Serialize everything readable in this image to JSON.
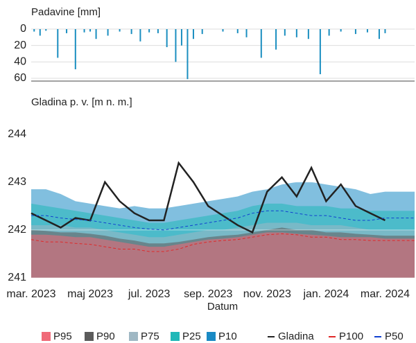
{
  "chart_data": [
    {
      "type": "bar",
      "y_label": "Padavine [mm]",
      "color": "#1a8ec0",
      "inverted": true,
      "x": [
        0.1,
        0.3,
        0.5,
        0.9,
        1.2,
        1.5,
        1.8,
        2.0,
        2.2,
        2.6,
        3.0,
        3.4,
        3.7,
        4.0,
        4.3,
        4.6,
        4.9,
        5.1,
        5.3,
        5.5,
        5.8,
        6.5,
        7.0,
        7.3,
        7.8,
        8.3,
        8.6,
        9.0,
        9.4,
        9.8,
        10.1,
        10.5,
        11.0,
        11.4,
        11.8,
        12.0
      ],
      "values": [
        3,
        8,
        2,
        35,
        5,
        49,
        4,
        3,
        12,
        8,
        3,
        6,
        15,
        4,
        5,
        22,
        40,
        20,
        61,
        12,
        6,
        3,
        5,
        10,
        35,
        25,
        8,
        10,
        12,
        55,
        8,
        3,
        6,
        4,
        12,
        5
      ],
      "xlim": [
        0,
        13
      ],
      "ylim": [
        0,
        60
      ],
      "yticks": [
        0,
        20,
        40,
        60
      ],
      "grid": true
    },
    {
      "type": "line",
      "y_label": "Gladina p. v. [m n. m.]",
      "x_label": "Datum",
      "grid": true,
      "xlim": [
        0,
        13
      ],
      "ylim": [
        241,
        244.4
      ],
      "yticks": [
        241,
        242,
        243,
        244
      ],
      "xticks": [
        {
          "value": 0,
          "label": "mar. 2023"
        },
        {
          "value": 2,
          "label": "maj 2023"
        },
        {
          "value": 4,
          "label": "jul. 2023"
        },
        {
          "value": 6,
          "label": "sep. 2023"
        },
        {
          "value": 8,
          "label": "nov. 2023"
        },
        {
          "value": 10,
          "label": "jan. 2024"
        },
        {
          "value": 12,
          "label": "mar. 2024"
        }
      ],
      "x": [
        0,
        0.5,
        1,
        1.5,
        2,
        2.5,
        3,
        3.5,
        4,
        4.5,
        5,
        5.5,
        6,
        6.5,
        7,
        7.5,
        8,
        8.5,
        9,
        9.5,
        10,
        10.5,
        11,
        11.5,
        12,
        12.5,
        13
      ],
      "series": [
        {
          "name": "P95",
          "style": "area",
          "color": "#f06a78",
          "values": [
            241.9,
            241.9,
            241.88,
            241.85,
            241.85,
            241.8,
            241.75,
            241.7,
            241.65,
            241.65,
            241.7,
            241.75,
            241.8,
            241.82,
            241.85,
            241.9,
            241.95,
            241.95,
            241.92,
            241.9,
            241.88,
            241.85,
            241.85,
            241.85,
            241.82,
            241.82,
            241.82
          ]
        },
        {
          "name": "P90",
          "style": "area",
          "color": "#5b5b5b",
          "values": [
            242.0,
            241.98,
            241.95,
            241.95,
            241.92,
            241.88,
            241.82,
            241.78,
            241.72,
            241.72,
            241.75,
            241.8,
            241.85,
            241.88,
            241.9,
            241.95,
            242.0,
            242.05,
            242.0,
            242.0,
            241.95,
            241.95,
            241.92,
            241.9,
            241.88,
            241.88,
            241.88
          ]
        },
        {
          "name": "P75",
          "style": "area",
          "color": "#9fb8c4",
          "values": [
            242.1,
            242.1,
            242.1,
            242.05,
            242.05,
            242.0,
            241.95,
            241.9,
            241.85,
            241.85,
            241.9,
            241.95,
            242.0,
            242.0,
            242.05,
            242.1,
            242.15,
            242.15,
            242.15,
            242.1,
            242.1,
            242.1,
            242.05,
            242.0,
            242.0,
            242.0,
            242.0
          ]
        },
        {
          "name": "P25",
          "style": "area",
          "color": "#20b8b8",
          "values": [
            242.55,
            242.5,
            242.45,
            242.4,
            242.35,
            242.3,
            242.25,
            242.2,
            242.15,
            242.15,
            242.2,
            242.25,
            242.3,
            242.35,
            242.4,
            242.5,
            242.55,
            242.55,
            242.5,
            242.5,
            242.5,
            242.45,
            242.45,
            242.4,
            242.4,
            242.4,
            242.4
          ]
        },
        {
          "name": "P10",
          "style": "area",
          "color": "#1a8ac4",
          "values": [
            242.85,
            242.85,
            242.75,
            242.6,
            242.55,
            242.5,
            242.45,
            242.5,
            242.45,
            242.45,
            242.5,
            242.55,
            242.6,
            242.65,
            242.7,
            242.8,
            242.85,
            242.95,
            243.0,
            243.0,
            242.95,
            242.9,
            242.85,
            242.75,
            242.8,
            242.8,
            242.8
          ]
        },
        {
          "name": "Gladina",
          "style": "solid",
          "color": "#222222",
          "values": [
            242.35,
            242.2,
            242.05,
            242.25,
            242.2,
            243.0,
            242.6,
            242.35,
            242.2,
            242.2,
            243.4,
            243.0,
            242.5,
            242.3,
            242.1,
            241.95,
            242.8,
            243.1,
            242.7,
            243.3,
            242.6,
            242.95,
            242.5,
            242.35,
            242.2,
            null,
            null
          ]
        },
        {
          "name": "P100",
          "style": "dashed",
          "color": "#e02828",
          "values": [
            241.8,
            241.75,
            241.75,
            241.72,
            241.7,
            241.65,
            241.6,
            241.6,
            241.55,
            241.55,
            241.6,
            241.7,
            241.75,
            241.78,
            241.8,
            241.85,
            241.9,
            241.92,
            241.9,
            241.85,
            241.85,
            241.8,
            241.8,
            241.78,
            241.78,
            241.78,
            241.78
          ]
        },
        {
          "name": "P50",
          "style": "dashed",
          "color": "#1040d0",
          "values": [
            242.3,
            242.3,
            242.25,
            242.22,
            242.2,
            242.15,
            242.1,
            242.05,
            242.02,
            242.0,
            242.05,
            242.1,
            242.15,
            242.2,
            242.25,
            242.35,
            242.4,
            242.4,
            242.35,
            242.3,
            242.3,
            242.25,
            242.2,
            242.2,
            242.25,
            242.25,
            242.25
          ]
        }
      ]
    }
  ]
}
